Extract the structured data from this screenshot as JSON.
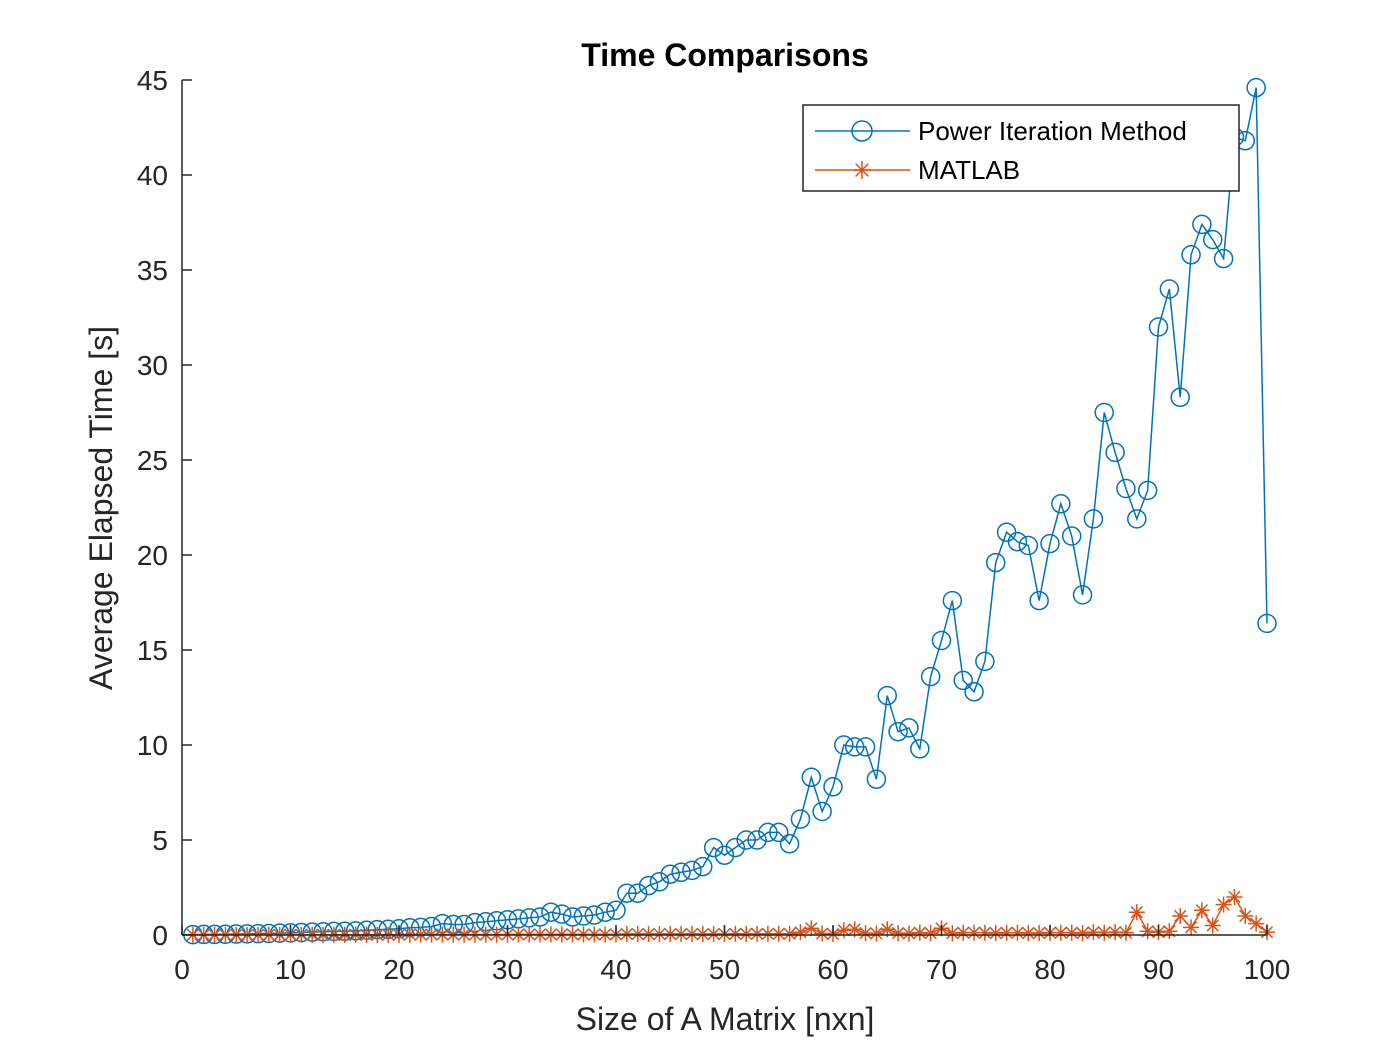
{
  "chart_data": {
    "type": "line",
    "title": "Time Comparisons",
    "xlabel": "Size of A Matrix [nxn]",
    "ylabel": "Average Elapsed Time [s]",
    "xlim": [
      0,
      100
    ],
    "ylim": [
      0,
      45
    ],
    "xticks": [
      "0",
      "10",
      "20",
      "30",
      "40",
      "50",
      "60",
      "70",
      "80",
      "90",
      "100"
    ],
    "yticks": [
      "0",
      "5",
      "10",
      "15",
      "20",
      "25",
      "30",
      "35",
      "40",
      "45"
    ],
    "grid": false,
    "legend_position": "top-right",
    "x": [
      1,
      2,
      3,
      4,
      5,
      6,
      7,
      8,
      9,
      10,
      11,
      12,
      13,
      14,
      15,
      16,
      17,
      18,
      19,
      20,
      21,
      22,
      23,
      24,
      25,
      26,
      27,
      28,
      29,
      30,
      31,
      32,
      33,
      34,
      35,
      36,
      37,
      38,
      39,
      40,
      41,
      42,
      43,
      44,
      45,
      46,
      47,
      48,
      49,
      50,
      51,
      52,
      53,
      54,
      55,
      56,
      57,
      58,
      59,
      60,
      61,
      62,
      63,
      64,
      65,
      66,
      67,
      68,
      69,
      70,
      71,
      72,
      73,
      74,
      75,
      76,
      77,
      78,
      79,
      80,
      81,
      82,
      83,
      84,
      85,
      86,
      87,
      88,
      89,
      90,
      91,
      92,
      93,
      94,
      95,
      96,
      97,
      98,
      99,
      100
    ],
    "series": [
      {
        "name": "Power Iteration Method",
        "color": "#0072BD",
        "marker": "circle",
        "values": [
          0.02,
          0.03,
          0.03,
          0.04,
          0.05,
          0.06,
          0.07,
          0.08,
          0.1,
          0.11,
          0.13,
          0.15,
          0.17,
          0.19,
          0.2,
          0.22,
          0.25,
          0.28,
          0.3,
          0.33,
          0.38,
          0.4,
          0.45,
          0.6,
          0.55,
          0.55,
          0.65,
          0.7,
          0.75,
          0.8,
          0.85,
          0.9,
          0.95,
          1.2,
          1.1,
          0.95,
          1.0,
          1.05,
          1.2,
          1.3,
          2.2,
          2.2,
          2.6,
          2.8,
          3.2,
          3.3,
          3.4,
          3.6,
          4.6,
          4.2,
          4.6,
          5.0,
          5.0,
          5.4,
          5.4,
          4.8,
          6.1,
          8.3,
          6.5,
          7.8,
          10.0,
          9.9,
          9.9,
          8.2,
          12.6,
          10.7,
          10.9,
          9.8,
          13.6,
          15.5,
          17.6,
          13.4,
          12.8,
          14.4,
          19.6,
          21.2,
          20.7,
          20.5,
          17.6,
          20.6,
          22.7,
          21.0,
          17.9,
          21.9,
          27.5,
          25.4,
          23.5,
          21.9,
          23.4,
          32.0,
          34.0,
          28.3,
          35.8,
          37.4,
          36.6,
          35.6,
          42.0,
          41.8,
          44.6,
          16.4
        ]
      },
      {
        "name": "MATLAB",
        "color": "#D95319",
        "marker": "asterisk",
        "values": [
          0.01,
          0.01,
          0.01,
          0.01,
          0.01,
          0.01,
          0.01,
          0.01,
          0.01,
          0.01,
          0.01,
          0.01,
          0.01,
          0.01,
          0.01,
          0.01,
          0.01,
          0.01,
          0.01,
          0.01,
          0.02,
          0.02,
          0.02,
          0.02,
          0.02,
          0.02,
          0.02,
          0.02,
          0.02,
          0.02,
          0.03,
          0.03,
          0.03,
          0.03,
          0.03,
          0.03,
          0.03,
          0.03,
          0.03,
          0.03,
          0.05,
          0.05,
          0.05,
          0.05,
          0.05,
          0.05,
          0.05,
          0.05,
          0.05,
          0.05,
          0.06,
          0.06,
          0.06,
          0.06,
          0.06,
          0.06,
          0.15,
          0.35,
          0.08,
          0.05,
          0.25,
          0.3,
          0.1,
          0.08,
          0.3,
          0.1,
          0.08,
          0.12,
          0.1,
          0.35,
          0.1,
          0.12,
          0.12,
          0.12,
          0.1,
          0.12,
          0.12,
          0.1,
          0.1,
          0.12,
          0.12,
          0.12,
          0.1,
          0.15,
          0.12,
          0.15,
          0.12,
          1.2,
          0.2,
          0.15,
          0.2,
          1.0,
          0.4,
          1.3,
          0.5,
          1.6,
          2.0,
          1.0,
          0.6,
          0.15
        ]
      }
    ]
  }
}
